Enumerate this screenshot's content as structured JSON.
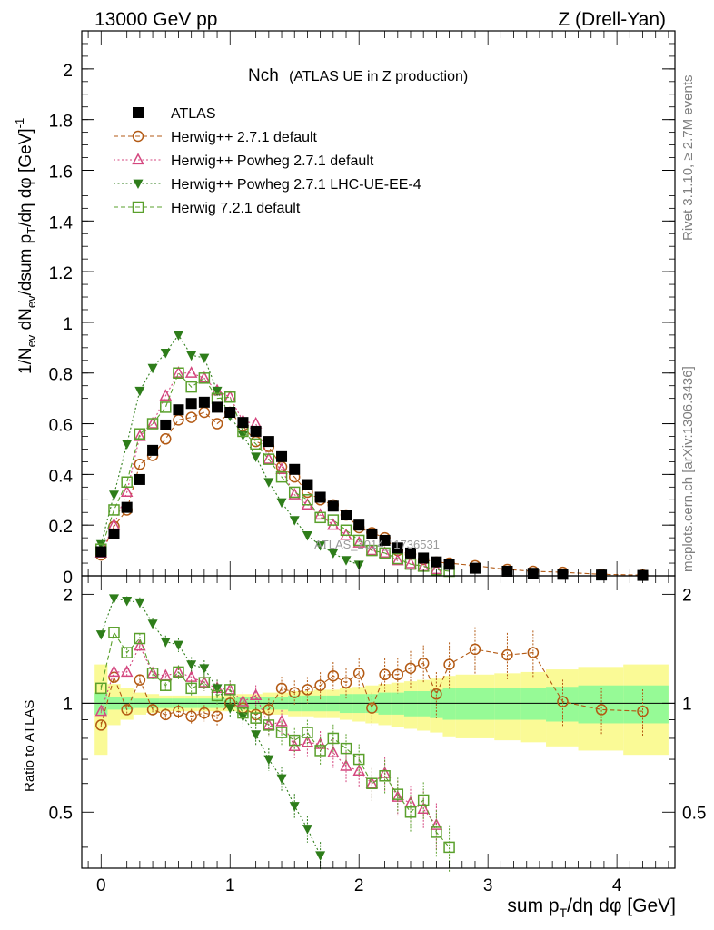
{
  "header": {
    "left": "13000 GeV pp",
    "right": "Z (Drell-Yan)",
    "side_top": "Rivet 3.1.10, ≥ 2.7M events",
    "side_bottom": "mcplots.cern.ch [arXiv:1306.3436]",
    "watermark": "ATLAS_2014_I1736531"
  },
  "chart_data": {
    "type": "scatter",
    "title": "Nch",
    "subtitle": "(ATLAS UE in Z production)",
    "xlabel": "sum pT/dη dφ [GeV]",
    "ylabel": "1/Nev dNev/dsum pT/dη dφ [GeV]⁻¹",
    "ratio_ylabel": "Ratio to ATLAS",
    "xlim": [
      -0.15,
      4.45
    ],
    "ylim": [
      0,
      2.15
    ],
    "ratio_ylim": [
      0.35,
      2.25
    ],
    "ratio_log": true,
    "x_ticks": [
      "0",
      "1",
      "2",
      "3",
      "4"
    ],
    "y_ticks": [
      "0",
      "0.2",
      "0.4",
      "0.6",
      "0.8",
      "1",
      "1.2",
      "1.4",
      "1.6",
      "1.8",
      "2"
    ],
    "ratio_ticks": [
      "0.5",
      "1",
      "2"
    ],
    "legend_position": "top-left",
    "band_edges": [
      -0.05,
      0.05,
      0.15,
      0.25,
      0.35,
      0.45,
      0.55,
      0.65,
      0.75,
      0.85,
      0.95,
      1.05,
      1.15,
      1.25,
      1.35,
      1.45,
      1.55,
      1.65,
      1.75,
      1.85,
      1.95,
      2.05,
      2.15,
      2.25,
      2.35,
      2.45,
      2.55,
      2.65,
      2.75,
      3.05,
      3.25,
      3.45,
      3.7,
      4.05,
      4.4
    ],
    "band_inner": [
      0.07,
      0.04,
      0.04,
      0.03,
      0.03,
      0.03,
      0.03,
      0.03,
      0.03,
      0.03,
      0.03,
      0.04,
      0.04,
      0.04,
      0.04,
      0.05,
      0.05,
      0.05,
      0.05,
      0.06,
      0.06,
      0.06,
      0.07,
      0.07,
      0.08,
      0.08,
      0.09,
      0.1,
      0.1,
      0.1,
      0.1,
      0.11,
      0.12,
      0.12
    ],
    "band_outer": [
      0.28,
      0.13,
      0.1,
      0.07,
      0.06,
      0.05,
      0.05,
      0.05,
      0.05,
      0.05,
      0.05,
      0.06,
      0.06,
      0.07,
      0.07,
      0.08,
      0.08,
      0.09,
      0.09,
      0.1,
      0.11,
      0.12,
      0.13,
      0.14,
      0.15,
      0.16,
      0.17,
      0.19,
      0.2,
      0.21,
      0.22,
      0.24,
      0.26,
      0.28
    ],
    "series": [
      {
        "name": "ATLAS",
        "color": "#000000",
        "marker": "square-filled",
        "line": "none",
        "x": [
          0,
          0.1,
          0.2,
          0.3,
          0.4,
          0.5,
          0.6,
          0.7,
          0.8,
          0.9,
          1.0,
          1.1,
          1.2,
          1.3,
          1.4,
          1.5,
          1.6,
          1.7,
          1.8,
          1.9,
          2.0,
          2.1,
          2.2,
          2.3,
          2.4,
          2.5,
          2.6,
          2.7,
          2.9,
          3.15,
          3.35,
          3.58,
          3.88,
          4.2
        ],
        "y": [
          0.095,
          0.165,
          0.27,
          0.38,
          0.495,
          0.595,
          0.655,
          0.68,
          0.685,
          0.665,
          0.645,
          0.605,
          0.57,
          0.53,
          0.47,
          0.42,
          0.36,
          0.31,
          0.275,
          0.24,
          0.2,
          0.165,
          0.14,
          0.11,
          0.09,
          0.07,
          0.055,
          0.045,
          0.03,
          0.018,
          0.01,
          0.006,
          0.003,
          0.0015
        ],
        "ratio": []
      },
      {
        "name": "Herwig++ 2.7.1 default",
        "color": "#b35a14",
        "marker": "circle-open",
        "line": "dashed",
        "x": [
          0,
          0.1,
          0.2,
          0.3,
          0.4,
          0.5,
          0.6,
          0.7,
          0.8,
          0.9,
          1.0,
          1.1,
          1.2,
          1.3,
          1.4,
          1.5,
          1.6,
          1.7,
          1.8,
          1.9,
          2.0,
          2.1,
          2.2,
          2.3,
          2.4,
          2.5,
          2.6,
          2.7,
          2.9,
          3.15,
          3.35,
          3.58,
          3.88,
          4.2
        ],
        "y": [
          0.082,
          0.195,
          0.26,
          0.44,
          0.475,
          0.54,
          0.615,
          0.625,
          0.645,
          0.6,
          0.645,
          0.59,
          0.53,
          0.51,
          0.43,
          0.39,
          0.33,
          0.3,
          0.28,
          0.24,
          0.19,
          0.17,
          0.15,
          0.1,
          0.085,
          0.064,
          0.054,
          0.05,
          0.04,
          0.025,
          0.018,
          0.014,
          0.006,
          0.003
        ],
        "ratio": [
          0.87,
          1.18,
          0.96,
          1.16,
          0.96,
          0.93,
          0.95,
          0.92,
          0.94,
          0.92,
          1.0,
          0.97,
          0.93,
          0.96,
          1.1,
          1.07,
          1.09,
          1.12,
          1.19,
          1.14,
          1.21,
          0.97,
          1.2,
          1.2,
          1.25,
          1.29,
          1.06,
          1.28,
          1.41,
          1.36,
          1.38,
          1.01,
          0.96,
          0.95
        ]
      },
      {
        "name": "Herwig++ Powheg 2.7.1 default",
        "color": "#d4477f",
        "marker": "triangle-open",
        "line": "dotted",
        "x": [
          0,
          0.1,
          0.2,
          0.3,
          0.4,
          0.5,
          0.6,
          0.7,
          0.8,
          0.9,
          1.0,
          1.1,
          1.2,
          1.3,
          1.4,
          1.5,
          1.6,
          1.7,
          1.8,
          1.9,
          2.0,
          2.1,
          2.2,
          2.3,
          2.4,
          2.5,
          2.6
        ],
        "y": [
          0.09,
          0.2,
          0.33,
          0.55,
          0.6,
          0.71,
          0.8,
          0.8,
          0.78,
          0.73,
          0.705,
          0.61,
          0.6,
          0.46,
          0.42,
          0.32,
          0.28,
          0.24,
          0.2,
          0.16,
          0.13,
          0.1,
          0.09,
          0.06,
          0.048,
          0.036,
          0.025
        ],
        "ratio": [
          0.95,
          1.22,
          1.22,
          1.44,
          1.21,
          1.19,
          1.22,
          1.18,
          1.14,
          1.1,
          1.09,
          1.01,
          1.05,
          0.87,
          0.89,
          0.76,
          0.78,
          0.77,
          0.73,
          0.67,
          0.65,
          0.6,
          0.64,
          0.55,
          0.53,
          0.51,
          0.46
        ]
      },
      {
        "name": "Herwig++ Powheg 2.7.1 LHC-UE-EE-4",
        "color": "#2e7d1a",
        "marker": "triangle-down-filled",
        "line": "dotted",
        "x": [
          0,
          0.1,
          0.2,
          0.3,
          0.4,
          0.5,
          0.6,
          0.7,
          0.8,
          0.9,
          1.0,
          1.1,
          1.2,
          1.3,
          1.4,
          1.5,
          1.6,
          1.7,
          1.8,
          1.9,
          2.0
        ],
        "y": [
          0.125,
          0.32,
          0.52,
          0.73,
          0.82,
          0.88,
          0.95,
          0.87,
          0.86,
          0.73,
          0.63,
          0.555,
          0.47,
          0.37,
          0.29,
          0.22,
          0.16,
          0.12,
          0.09,
          0.062,
          0.044
        ],
        "ratio": [
          1.55,
          1.95,
          1.92,
          1.9,
          1.66,
          1.48,
          1.45,
          1.28,
          1.25,
          1.1,
          0.97,
          0.92,
          0.82,
          0.7,
          0.62,
          0.52,
          0.45,
          0.38,
          0.33,
          0.26,
          0.22
        ]
      },
      {
        "name": "Herwig 7.2.1 default",
        "color": "#5aa02c",
        "marker": "square-open",
        "line": "dashed",
        "x": [
          0,
          0.1,
          0.2,
          0.3,
          0.4,
          0.5,
          0.6,
          0.7,
          0.8,
          0.9,
          1.0,
          1.1,
          1.2,
          1.3,
          1.4,
          1.5,
          1.6,
          1.7,
          1.8,
          1.9,
          2.0,
          2.1,
          2.2,
          2.3,
          2.4,
          2.5,
          2.6,
          2.7
        ],
        "y": [
          0.105,
          0.26,
          0.37,
          0.56,
          0.6,
          0.665,
          0.8,
          0.745,
          0.78,
          0.7,
          0.705,
          0.57,
          0.52,
          0.46,
          0.39,
          0.33,
          0.3,
          0.23,
          0.22,
          0.18,
          0.14,
          0.1,
          0.09,
          0.068,
          0.046,
          0.038,
          0.024,
          0.018
        ],
        "ratio": [
          1.1,
          1.57,
          1.38,
          1.51,
          1.21,
          1.12,
          1.22,
          1.1,
          1.14,
          1.05,
          1.09,
          0.94,
          0.91,
          0.87,
          0.83,
          0.79,
          0.83,
          0.74,
          0.8,
          0.75,
          0.7,
          0.6,
          0.63,
          0.56,
          0.5,
          0.54,
          0.44,
          0.4
        ]
      }
    ]
  }
}
